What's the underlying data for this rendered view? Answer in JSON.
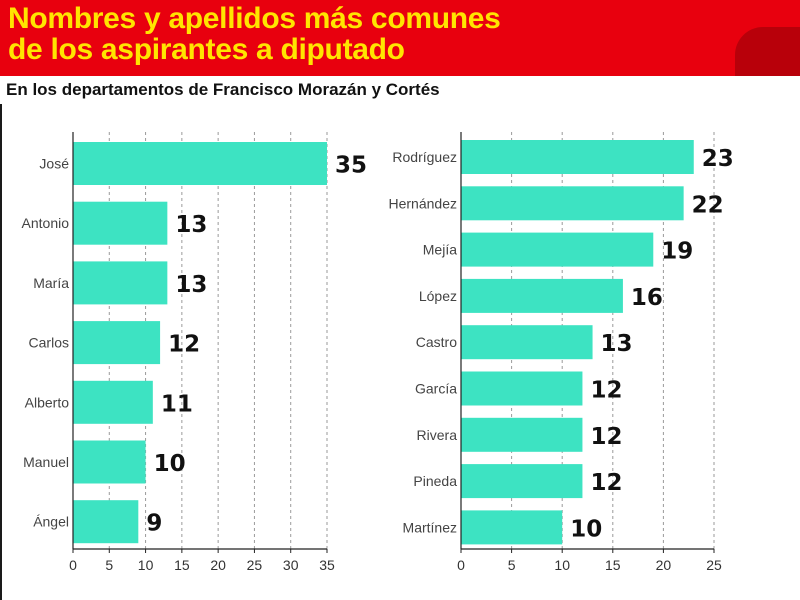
{
  "header": {
    "title_line1": "Nombres y apellidos más comunes",
    "title_line2": "de los aspirantes a diputado",
    "subtitle": "En los departamentos de Francisco Morazán y Cortés"
  },
  "colors": {
    "header_bg": "#e8000e",
    "header_accent": "#b8000a",
    "title_text": "#ffe500",
    "bar": "#3de3c2"
  },
  "chart_data": [
    {
      "type": "bar",
      "orientation": "horizontal",
      "categories": [
        "José",
        "Antonio",
        "María",
        "Carlos",
        "Alberto",
        "Manuel",
        "Ángel"
      ],
      "values": [
        35,
        13,
        13,
        12,
        11,
        10,
        9
      ],
      "xlim": [
        0,
        35
      ],
      "xticks": [
        0,
        5,
        10,
        15,
        20,
        25,
        30,
        35
      ],
      "grid": "vertical dashed"
    },
    {
      "type": "bar",
      "orientation": "horizontal",
      "categories": [
        "Rodríguez",
        "Hernández",
        "Mejía",
        "López",
        "Castro",
        "García",
        "Rivera",
        "Pineda",
        "Martínez"
      ],
      "values": [
        23,
        22,
        19,
        16,
        13,
        12,
        12,
        12,
        10
      ],
      "xlim": [
        0,
        25
      ],
      "xticks": [
        0,
        5,
        10,
        15,
        20,
        25
      ],
      "grid": "vertical dashed"
    }
  ]
}
